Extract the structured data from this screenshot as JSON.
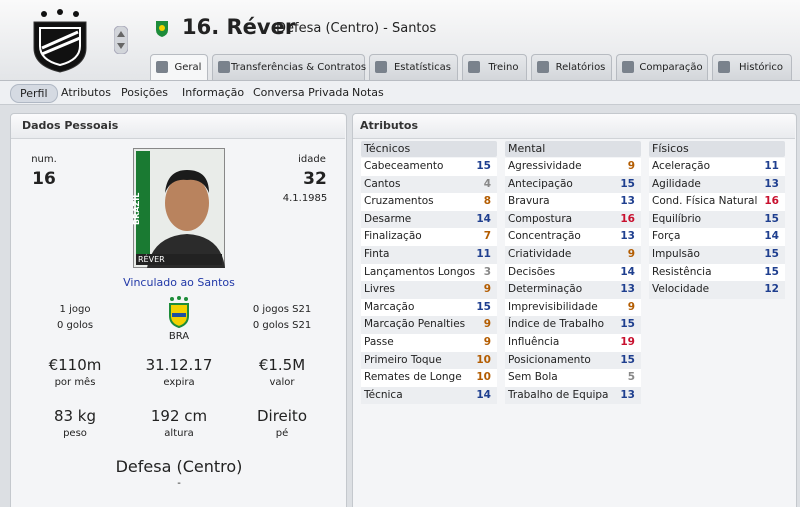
{
  "header": {
    "title": "16. Réver",
    "subtitle": "Defesa (Centro) - Santos"
  },
  "tabs": [
    "Geral",
    "Transferências & Contratos",
    "Estatísticas",
    "Treino",
    "Relatórios",
    "Comparação",
    "Histórico"
  ],
  "subtabs": [
    "Perfil",
    "Atributos",
    "Posições",
    "Informação",
    "Conversa Privada",
    "Notas"
  ],
  "personal": {
    "title": "Dados Pessoais",
    "number_label": "num.",
    "number": 16,
    "age_label": "idade",
    "age": 32,
    "birth_date": "4.1.1985",
    "photo": {
      "country": "BRAZIL",
      "caption": "RÉVER"
    },
    "club_link": "Vinculado ao Santos",
    "caps": "1 jogo",
    "goals": "0 golos",
    "nation": "BRA",
    "u21_caps": "0 jogos S21",
    "u21_goals": "0 golos S21",
    "stats": [
      {
        "value": "€110m",
        "label": "por mês"
      },
      {
        "value": "31.12.17",
        "label": "expira"
      },
      {
        "value": "€1.5M",
        "label": "valor"
      },
      {
        "value": "83 kg",
        "label": "peso"
      },
      {
        "value": "192 cm",
        "label": "altura"
      },
      {
        "value": "Direito",
        "label": "pé"
      }
    ],
    "position": "Defesa (Centro)",
    "position_sub": "-"
  },
  "attributes": {
    "title": "Atributos",
    "groups": [
      {
        "name": "Técnicos",
        "rows": [
          [
            "Cabeceamento",
            15
          ],
          [
            "Cantos",
            4
          ],
          [
            "Cruzamentos",
            8
          ],
          [
            "Desarme",
            14
          ],
          [
            "Finalização",
            7
          ],
          [
            "Finta",
            11
          ],
          [
            "Lançamentos Longos",
            3
          ],
          [
            "Livres",
            9
          ],
          [
            "Marcação",
            15
          ],
          [
            "Marcação Penalties",
            9
          ],
          [
            "Passe",
            9
          ],
          [
            "Primeiro Toque",
            10
          ],
          [
            "Remates de Longe",
            10
          ],
          [
            "Técnica",
            14
          ]
        ]
      },
      {
        "name": "Mental",
        "rows": [
          [
            "Agressividade",
            9
          ],
          [
            "Antecipação",
            15
          ],
          [
            "Bravura",
            13
          ],
          [
            "Compostura",
            16
          ],
          [
            "Concentração",
            13
          ],
          [
            "Criatividade",
            9
          ],
          [
            "Decisões",
            14
          ],
          [
            "Determinação",
            13
          ],
          [
            "Imprevisibilidade",
            9
          ],
          [
            "Índice de Trabalho",
            15
          ],
          [
            "Influência",
            19
          ],
          [
            "Posicionamento",
            15
          ],
          [
            "Sem Bola",
            5
          ],
          [
            "Trabalho de Equipa",
            13
          ]
        ]
      },
      {
        "name": "Físicos",
        "rows": [
          [
            "Aceleração",
            11
          ],
          [
            "Agilidade",
            13
          ],
          [
            "Cond. Física Natural",
            16
          ],
          [
            "Equilíbrio",
            15
          ],
          [
            "Força",
            14
          ],
          [
            "Impulsão",
            15
          ],
          [
            "Resistência",
            15
          ],
          [
            "Velocidade",
            12
          ]
        ]
      }
    ]
  }
}
